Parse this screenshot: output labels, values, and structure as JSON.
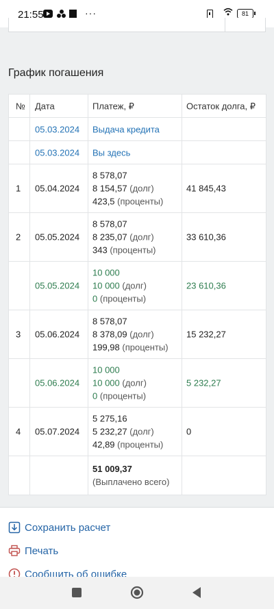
{
  "status_bar": {
    "time": "21:55",
    "battery": "81"
  },
  "section": {
    "title": "График погашения"
  },
  "table": {
    "headers": [
      "№",
      "Дата",
      "Платеж, ₽",
      "Остаток долга, ₽"
    ],
    "rows": [
      {
        "num": "",
        "date": "05.03.2024",
        "payment": [
          "Выдача кредита"
        ],
        "balance": ""
      },
      {
        "num": "",
        "date": "05.03.2024",
        "payment": [
          "Вы здесь"
        ],
        "balance": ""
      },
      {
        "num": "1",
        "date": "05.04.2024",
        "payment": [
          "8 578,07",
          "8 154,57",
          "423,5"
        ],
        "balance": "41 845,43"
      },
      {
        "num": "2",
        "date": "05.05.2024",
        "payment": [
          "8 578,07",
          "8 235,07",
          "343"
        ],
        "balance": "33 610,36"
      },
      {
        "num": "",
        "date": "05.05.2024",
        "payment": [
          "10 000",
          "10 000",
          "0"
        ],
        "balance": "23 610,36"
      },
      {
        "num": "3",
        "date": "05.06.2024",
        "payment": [
          "8 578,07",
          "8 378,09",
          "199,98"
        ],
        "balance": "15 232,27"
      },
      {
        "num": "",
        "date": "05.06.2024",
        "payment": [
          "10 000",
          "10 000",
          "0"
        ],
        "balance": "5 232,27"
      },
      {
        "num": "4",
        "date": "05.07.2024",
        "payment": [
          "5 275,16",
          "5 232,27",
          "42,89"
        ],
        "balance": "0"
      }
    ],
    "debt_suffix": "(долг)",
    "interest_suffix": "(проценты)",
    "total": {
      "value": "51 009,37",
      "label": "(Выплачено всего)"
    }
  },
  "actions": {
    "save": "Сохранить расчет",
    "print": "Печать",
    "report": "Сообщить об ошибке"
  },
  "colors": {
    "link": "#2473b6",
    "early_payment": "#2e7d4f"
  }
}
